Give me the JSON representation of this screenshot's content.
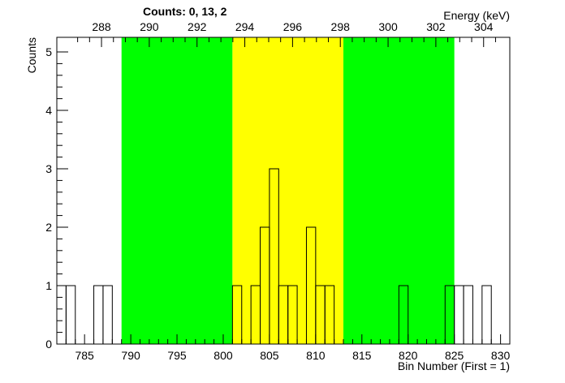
{
  "chart_data": {
    "type": "histogram",
    "title": "Counts:   0,   13,   2",
    "xlabel": "Bin Number (First = 1)",
    "ylabel": "Counts",
    "x2label": "Energy (keV)",
    "xlim": [
      782,
      831
    ],
    "ylim": [
      0,
      5.25
    ],
    "x_ticks": [
      785,
      790,
      795,
      800,
      805,
      810,
      815,
      820,
      825,
      830
    ],
    "y_ticks": [
      0,
      1,
      2,
      3,
      4,
      5
    ],
    "x2_ticks": [
      288,
      290,
      292,
      294,
      296,
      298,
      300,
      302,
      304
    ],
    "x2_axis_mapping": {
      "a_bin": 792,
      "a_kev": 290,
      "b_bin": 823,
      "b_kev": 302
    },
    "regions": [
      {
        "name": "background-left",
        "x_start": 789,
        "x_end": 801,
        "color": "#00ff00"
      },
      {
        "name": "peak",
        "x_start": 801,
        "x_end": 813,
        "color": "#ffff00"
      },
      {
        "name": "background-right",
        "x_start": 813,
        "x_end": 825,
        "color": "#00ff00"
      }
    ],
    "bins": [
      {
        "x": 782,
        "y": 1
      },
      {
        "x": 783,
        "y": 1
      },
      {
        "x": 786,
        "y": 1
      },
      {
        "x": 787,
        "y": 1
      },
      {
        "x": 801,
        "y": 1
      },
      {
        "x": 803,
        "y": 1
      },
      {
        "x": 804,
        "y": 2
      },
      {
        "x": 805,
        "y": 3
      },
      {
        "x": 806,
        "y": 1
      },
      {
        "x": 807,
        "y": 1
      },
      {
        "x": 809,
        "y": 2
      },
      {
        "x": 810,
        "y": 1
      },
      {
        "x": 811,
        "y": 1
      },
      {
        "x": 819,
        "y": 1
      },
      {
        "x": 824,
        "y": 1
      },
      {
        "x": 825,
        "y": 1
      },
      {
        "x": 826,
        "y": 1
      },
      {
        "x": 828,
        "y": 1
      }
    ],
    "grid": false,
    "legend": "none"
  }
}
